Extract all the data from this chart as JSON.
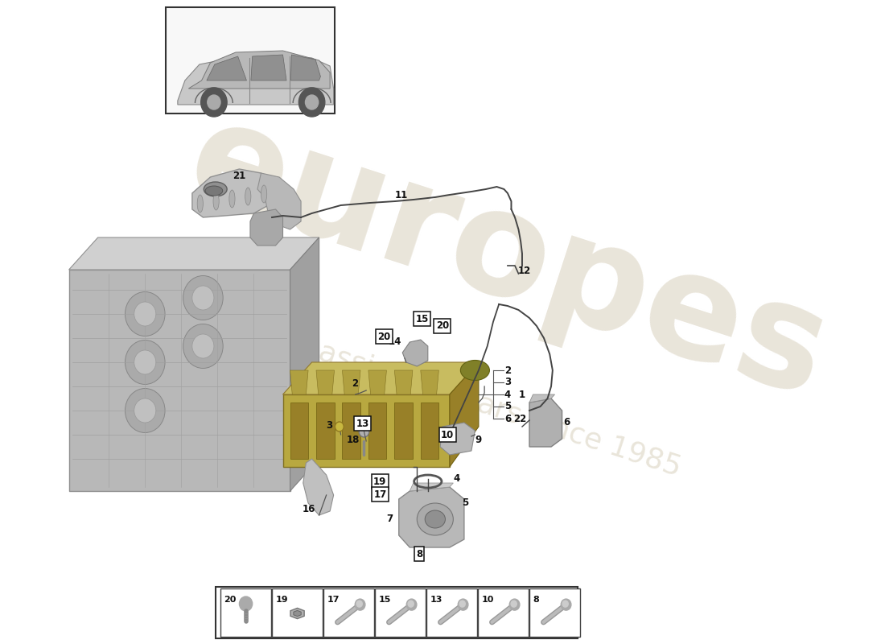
{
  "bg": "#ffffff",
  "wm1": "europes",
  "wm2": "a passion for cars since 1985",
  "wm_color": "#d8d0bc",
  "label_fs": 8.5,
  "bottom_items": [
    "20",
    "19",
    "17",
    "15",
    "13",
    "10",
    "8"
  ],
  "boxed_labels": [
    "8",
    "10",
    "13",
    "15",
    "17",
    "19",
    "20"
  ],
  "line_color": "#444444",
  "gray1": "#c8c8c8",
  "gray2": "#b0b0b0",
  "gray3": "#989898",
  "gray_dark": "#787878",
  "gray_light": "#e0e0e0",
  "manifold_gold": "#b8a840",
  "manifold_gold2": "#c8bc60",
  "manifold_gold3": "#988028"
}
